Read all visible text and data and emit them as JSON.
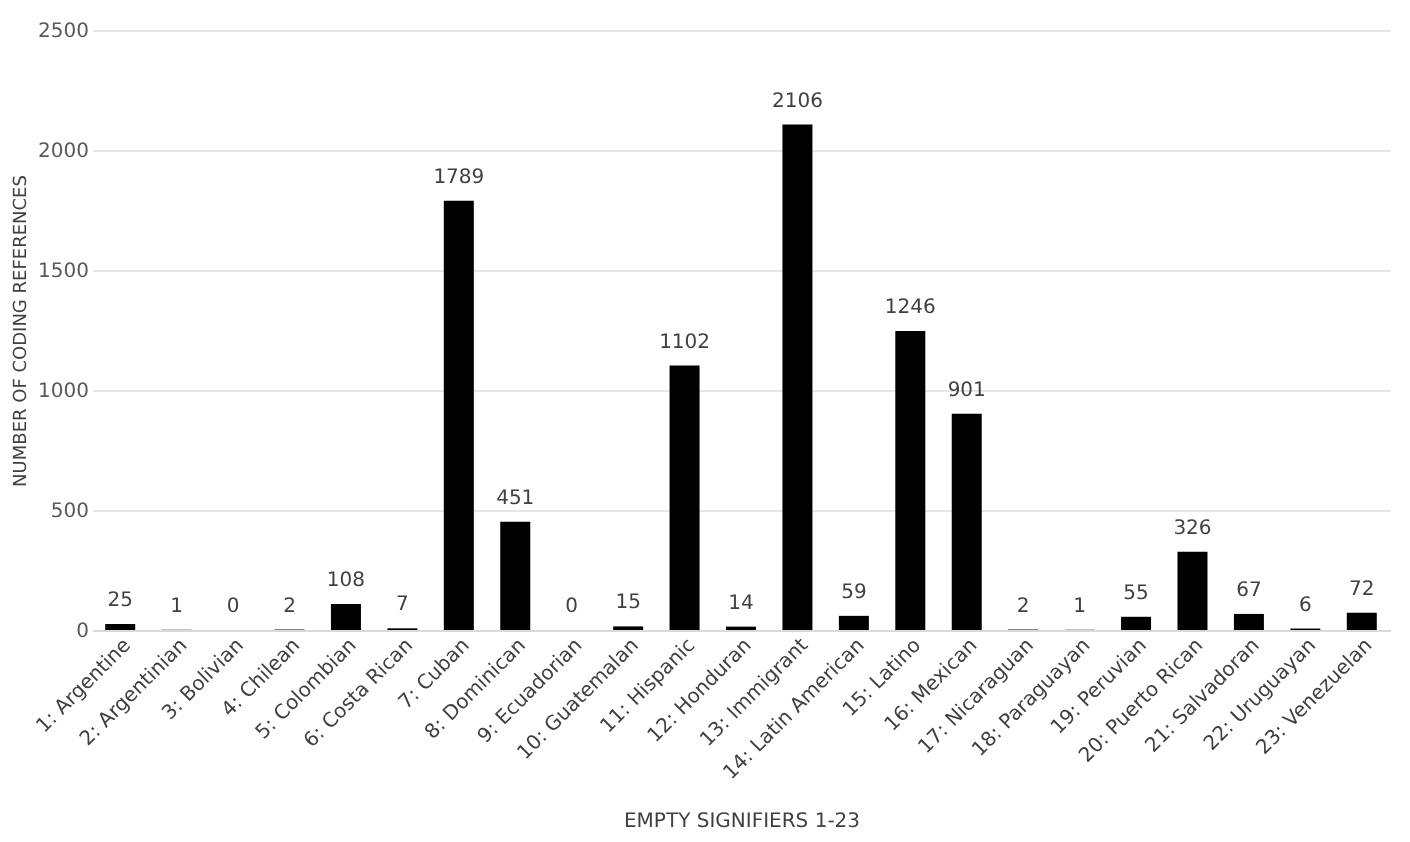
{
  "chart_data": {
    "type": "bar",
    "xlabel": "EMPTY SIGNIFIERS 1-23",
    "ylabel": "NUMBER OF CODING REFERENCES",
    "categories": [
      "1: Argentine",
      "2: Argentinian",
      "3: Bolivian",
      "4: Chilean",
      "5: Colombian",
      "6: Costa Rican",
      "7: Cuban",
      "8: Dominican",
      "9: Ecuadorian",
      "10: Guatemalan",
      "11: Hispanic",
      "12: Honduran",
      "13: Immigrant",
      "14: Latin American",
      "15: Latino",
      "16: Mexican",
      "17: Nicaraguan",
      "18: Paraguayan",
      "19: Peruvian",
      "20: Puerto Rican",
      "21: Salvadoran",
      "22: Uruguayan",
      "23: Venezuelan"
    ],
    "values": [
      25,
      1,
      0,
      2,
      108,
      7,
      1789,
      451,
      0,
      15,
      1102,
      14,
      2106,
      59,
      1246,
      901,
      2,
      1,
      55,
      326,
      67,
      6,
      72
    ],
    "color": "#000000",
    "ylim": [
      0,
      2500
    ],
    "yticks": [
      0,
      500,
      1000,
      1500,
      2000,
      2500
    ],
    "grid": "y",
    "data_labels": true
  }
}
